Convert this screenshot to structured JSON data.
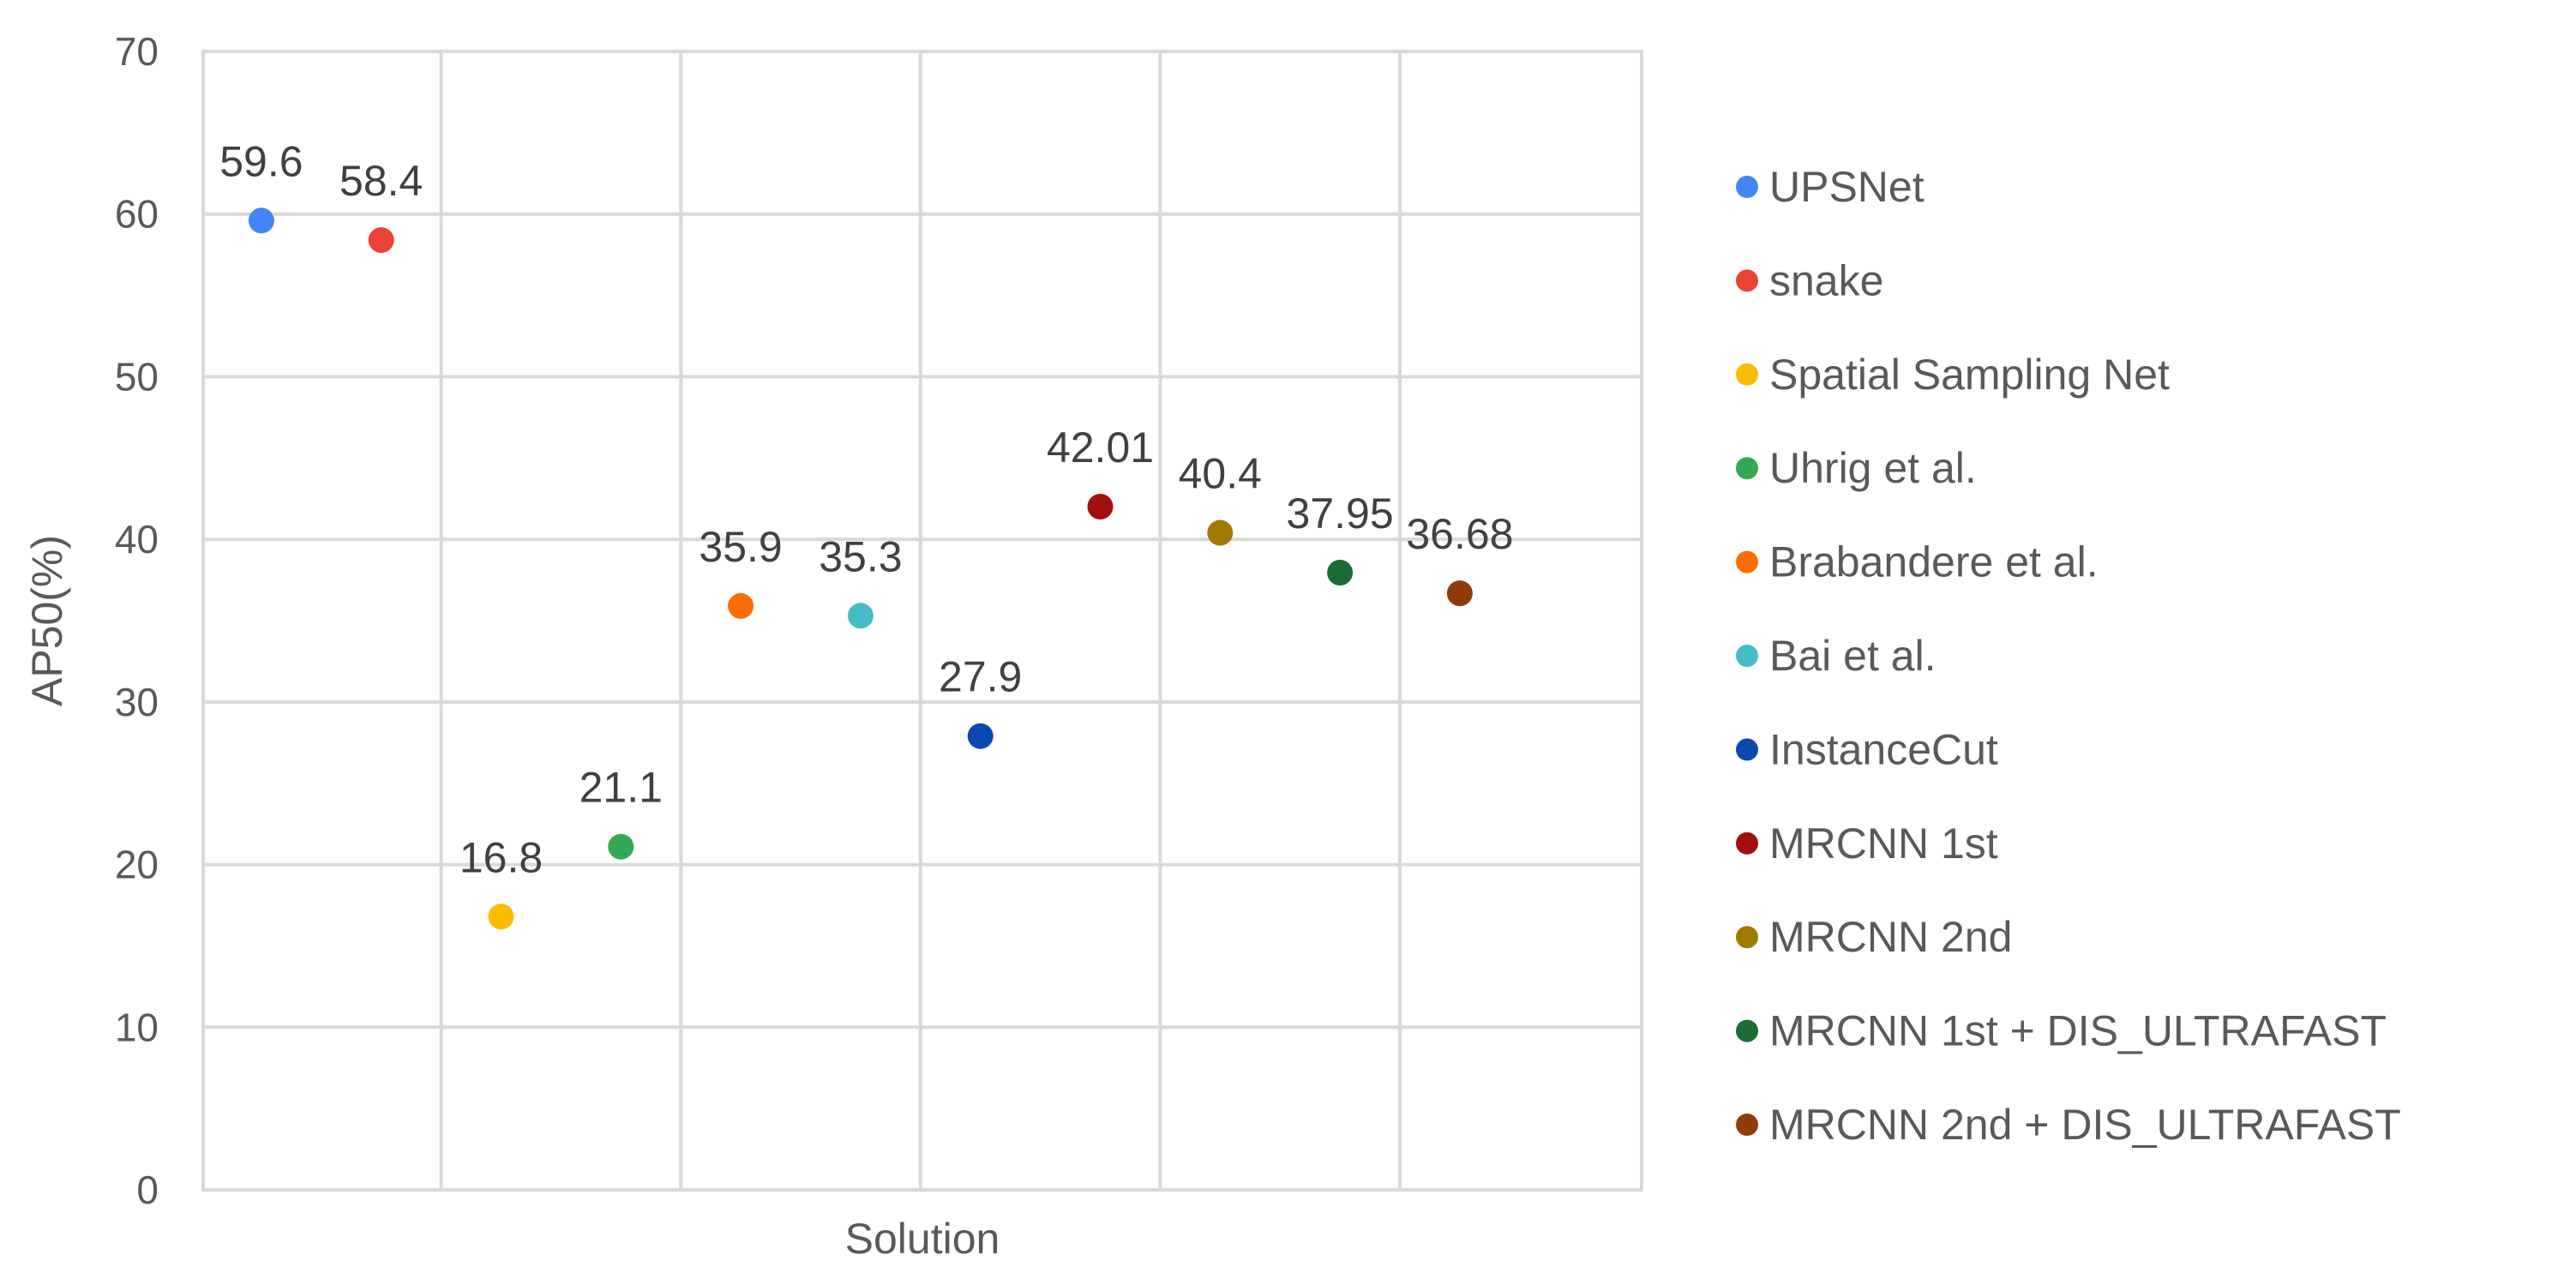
{
  "chart_data": {
    "type": "scatter",
    "title": "",
    "xlabel": "Solution",
    "ylabel": "AP50(%)",
    "ylim": [
      0,
      70
    ],
    "yticks": [
      "0",
      "10",
      "20",
      "30",
      "40",
      "50",
      "60",
      "70"
    ],
    "grid": true,
    "legend_position": "right",
    "series": [
      {
        "name": "UPSNet",
        "x": 1,
        "y": 59.6,
        "label": "59.6",
        "color": "#4285f4"
      },
      {
        "name": "snake",
        "x": 2,
        "y": 58.4,
        "label": "58.4",
        "color": "#ea4335"
      },
      {
        "name": "Spatial Sampling Net",
        "x": 3,
        "y": 16.8,
        "label": "16.8",
        "color": "#fbbc04"
      },
      {
        "name": "Uhrig et al.",
        "x": 4,
        "y": 21.1,
        "label": "21.1",
        "color": "#34a853"
      },
      {
        "name": "Brabandere et al.",
        "x": 5,
        "y": 35.9,
        "label": "35.9",
        "color": "#ff6d01"
      },
      {
        "name": "Bai et al.",
        "x": 6,
        "y": 35.3,
        "label": "35.3",
        "color": "#46bdc6"
      },
      {
        "name": "InstanceCut",
        "x": 7,
        "y": 27.9,
        "label": "27.9",
        "color": "#0b49b0"
      },
      {
        "name": "MRCNN 1st",
        "x": 8,
        "y": 42.01,
        "label": "42.01",
        "color": "#a50e0e"
      },
      {
        "name": "MRCNN 2nd",
        "x": 9,
        "y": 40.4,
        "label": "40.4",
        "color": "#a07a00"
      },
      {
        "name": "MRCNN 1st + DIS_ULTRAFAST",
        "x": 10,
        "y": 37.95,
        "label": "37.95",
        "color": "#1d6b35"
      },
      {
        "name": "MRCNN 2nd + DIS_ULTRAFAST",
        "x": 11,
        "y": 36.68,
        "label": "36.68",
        "color": "#8e3d0a"
      }
    ]
  }
}
